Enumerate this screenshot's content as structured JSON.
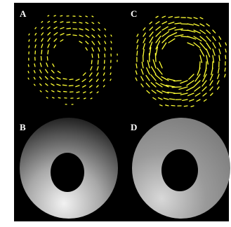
{
  "panels": {
    "a": {
      "label": "A"
    },
    "b": {
      "label": "B"
    },
    "c": {
      "label": "C"
    },
    "d": {
      "label": "D"
    }
  }
}
